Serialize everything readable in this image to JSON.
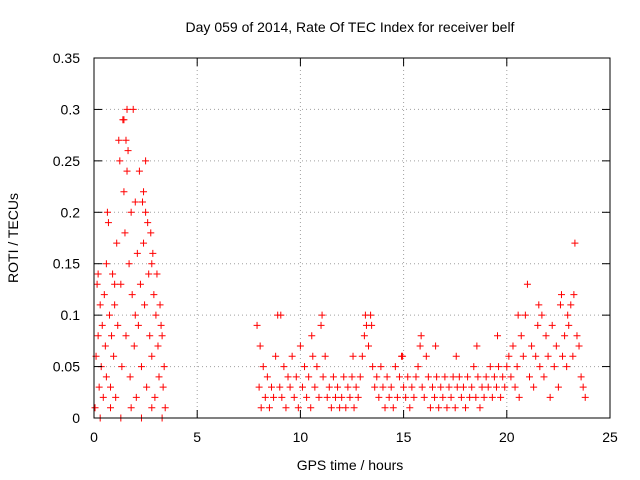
{
  "chart_data": {
    "type": "scatter",
    "title": "Day 059 of 2014, Rate Of TEC Index for receiver belf",
    "xlabel": "GPS time / hours",
    "ylabel": "ROTI / TECUs",
    "xlim": [
      0,
      25
    ],
    "ylim": [
      0,
      0.35
    ],
    "x_ticks": [
      0,
      5,
      10,
      15,
      20,
      25
    ],
    "x_tick_labels": [
      "0",
      "5",
      "10",
      "15",
      "20",
      "25"
    ],
    "y_ticks": [
      0,
      0.05,
      0.1,
      0.15,
      0.2,
      0.25,
      0.3,
      0.35
    ],
    "y_tick_labels": [
      "0",
      "0.05",
      "0.1",
      "0.15",
      "0.2",
      "0.25",
      "0.3",
      "0.35"
    ],
    "grid": true,
    "marker": "+",
    "marker_color": "#ff0000",
    "series": [
      {
        "name": "ROTI",
        "points": [
          [
            0.05,
            0.01
          ],
          [
            0.1,
            0.06
          ],
          [
            0.15,
            0.13
          ],
          [
            0.2,
            0.08
          ],
          [
            0.25,
            0.03
          ],
          [
            0.3,
            0.11
          ],
          [
            0.35,
            0.05
          ],
          [
            0.4,
            0.09
          ],
          [
            0.45,
            0.02
          ],
          [
            0.5,
            0.12
          ],
          [
            0.55,
            0.07
          ],
          [
            0.6,
            0.04
          ],
          [
            0.65,
            0.2
          ],
          [
            0.7,
            0.19
          ],
          [
            0.75,
            0.1
          ],
          [
            0.8,
            0.03
          ],
          [
            0.85,
            0.08
          ],
          [
            0.9,
            0.14
          ],
          [
            0.95,
            0.06
          ],
          [
            1.0,
            0.11
          ],
          [
            1.05,
            0.02
          ],
          [
            1.1,
            0.17
          ],
          [
            1.15,
            0.09
          ],
          [
            1.2,
            0.27
          ],
          [
            1.25,
            0.25
          ],
          [
            1.3,
            0.13
          ],
          [
            1.35,
            0.05
          ],
          [
            1.4,
            0.29
          ],
          [
            1.45,
            0.22
          ],
          [
            1.5,
            0.18
          ],
          [
            1.55,
            0.08
          ],
          [
            1.6,
            0.3
          ],
          [
            1.65,
            0.26
          ],
          [
            1.7,
            0.15
          ],
          [
            1.75,
            0.04
          ],
          [
            1.8,
            0.2
          ],
          [
            1.85,
            0.12
          ],
          [
            1.9,
            0.3
          ],
          [
            1.95,
            0.07
          ],
          [
            2.0,
            0.1
          ],
          [
            2.05,
            0.02
          ],
          [
            2.1,
            0.16
          ],
          [
            2.15,
            0.09
          ],
          [
            2.2,
            0.24
          ],
          [
            2.25,
            0.13
          ],
          [
            2.3,
            0.05
          ],
          [
            2.35,
            0.21
          ],
          [
            2.4,
            0.17
          ],
          [
            2.45,
            0.11
          ],
          [
            2.5,
            0.25
          ],
          [
            2.55,
            0.03
          ],
          [
            2.6,
            0.19
          ],
          [
            2.65,
            0.14
          ],
          [
            2.7,
            0.08
          ],
          [
            2.75,
            0.18
          ],
          [
            2.8,
            0.06
          ],
          [
            2.85,
            0.16
          ],
          [
            2.9,
            0.12
          ],
          [
            2.95,
            0.02
          ],
          [
            3.0,
            0.1
          ],
          [
            3.05,
            0.14
          ],
          [
            3.1,
            0.07
          ],
          [
            3.15,
            0.04
          ],
          [
            3.2,
            0.11
          ],
          [
            3.25,
            0.09
          ],
          [
            3.3,
            0.08
          ],
          [
            3.35,
            0.03
          ],
          [
            3.4,
            0.05
          ],
          [
            3.45,
            0.01
          ],
          [
            0.3,
            0.0
          ],
          [
            0.8,
            0.01
          ],
          [
            1.3,
            0.0
          ],
          [
            1.8,
            0.01
          ],
          [
            2.3,
            0.0
          ],
          [
            2.8,
            0.01
          ],
          [
            3.3,
            0.0
          ],
          [
            0.6,
            0.15
          ],
          [
            1.0,
            0.13
          ],
          [
            1.6,
            0.24
          ],
          [
            2.0,
            0.21
          ],
          [
            2.4,
            0.22
          ],
          [
            2.8,
            0.15
          ],
          [
            0.2,
            0.14
          ],
          [
            1.45,
            0.29
          ],
          [
            1.55,
            0.27
          ],
          [
            2.5,
            0.2
          ],
          [
            7.9,
            0.09
          ],
          [
            8.0,
            0.03
          ],
          [
            8.1,
            0.01
          ],
          [
            8.2,
            0.05
          ],
          [
            8.3,
            0.02
          ],
          [
            8.4,
            0.04
          ],
          [
            8.5,
            0.01
          ],
          [
            8.6,
            0.03
          ],
          [
            8.7,
            0.02
          ],
          [
            8.8,
            0.06
          ],
          [
            8.9,
            0.1
          ],
          [
            9.0,
            0.03
          ],
          [
            9.1,
            0.02
          ],
          [
            9.2,
            0.05
          ],
          [
            9.3,
            0.01
          ],
          [
            9.4,
            0.04
          ],
          [
            9.5,
            0.03
          ],
          [
            9.6,
            0.06
          ],
          [
            9.7,
            0.02
          ],
          [
            9.8,
            0.04
          ],
          [
            9.9,
            0.01
          ],
          [
            10.0,
            0.07
          ],
          [
            10.1,
            0.03
          ],
          [
            10.2,
            0.05
          ],
          [
            10.3,
            0.02
          ],
          [
            10.4,
            0.04
          ],
          [
            10.5,
            0.01
          ],
          [
            10.6,
            0.06
          ],
          [
            10.7,
            0.03
          ],
          [
            10.8,
            0.05
          ],
          [
            10.9,
            0.02
          ],
          [
            11.0,
            0.09
          ],
          [
            11.1,
            0.04
          ],
          [
            11.2,
            0.06
          ],
          [
            11.3,
            0.02
          ],
          [
            11.4,
            0.03
          ],
          [
            11.5,
            0.01
          ],
          [
            11.6,
            0.04
          ],
          [
            11.7,
            0.02
          ],
          [
            11.8,
            0.03
          ],
          [
            11.9,
            0.01
          ],
          [
            12.0,
            0.02
          ],
          [
            12.1,
            0.04
          ],
          [
            12.2,
            0.01
          ],
          [
            12.3,
            0.03
          ],
          [
            12.4,
            0.02
          ],
          [
            12.5,
            0.04
          ],
          [
            12.6,
            0.01
          ],
          [
            12.7,
            0.03
          ],
          [
            12.8,
            0.02
          ],
          [
            12.9,
            0.04
          ],
          [
            13.0,
            0.06
          ],
          [
            13.1,
            0.08
          ],
          [
            13.2,
            0.09
          ],
          [
            13.3,
            0.07
          ],
          [
            13.4,
            0.1
          ],
          [
            13.5,
            0.05
          ],
          [
            13.6,
            0.03
          ],
          [
            13.7,
            0.04
          ],
          [
            13.8,
            0.02
          ],
          [
            13.9,
            0.05
          ],
          [
            14.0,
            0.03
          ],
          [
            14.1,
            0.01
          ],
          [
            14.2,
            0.04
          ],
          [
            14.3,
            0.02
          ],
          [
            14.4,
            0.03
          ],
          [
            14.5,
            0.01
          ],
          [
            14.6,
            0.05
          ],
          [
            14.7,
            0.02
          ],
          [
            14.8,
            0.04
          ],
          [
            14.9,
            0.06
          ],
          [
            15.0,
            0.03
          ],
          [
            15.1,
            0.02
          ],
          [
            15.2,
            0.04
          ],
          [
            15.3,
            0.01
          ],
          [
            15.4,
            0.03
          ],
          [
            15.5,
            0.02
          ],
          [
            15.6,
            0.04
          ],
          [
            15.7,
            0.05
          ],
          [
            15.8,
            0.07
          ],
          [
            15.9,
            0.03
          ],
          [
            16.0,
            0.02
          ],
          [
            16.1,
            0.06
          ],
          [
            16.2,
            0.04
          ],
          [
            16.3,
            0.01
          ],
          [
            16.4,
            0.03
          ],
          [
            16.5,
            0.02
          ],
          [
            16.6,
            0.04
          ],
          [
            16.7,
            0.01
          ],
          [
            16.8,
            0.03
          ],
          [
            16.9,
            0.02
          ],
          [
            17.0,
            0.04
          ],
          [
            17.1,
            0.01
          ],
          [
            17.2,
            0.03
          ],
          [
            17.3,
            0.02
          ],
          [
            17.4,
            0.04
          ],
          [
            17.5,
            0.01
          ],
          [
            17.6,
            0.03
          ],
          [
            17.7,
            0.04
          ],
          [
            17.8,
            0.02
          ],
          [
            17.9,
            0.03
          ],
          [
            18.0,
            0.01
          ],
          [
            18.1,
            0.04
          ],
          [
            18.2,
            0.02
          ],
          [
            18.3,
            0.03
          ],
          [
            18.4,
            0.05
          ],
          [
            18.5,
            0.02
          ],
          [
            18.6,
            0.04
          ],
          [
            18.7,
            0.01
          ],
          [
            18.8,
            0.03
          ],
          [
            18.9,
            0.02
          ],
          [
            19.0,
            0.04
          ],
          [
            19.1,
            0.03
          ],
          [
            19.2,
            0.05
          ],
          [
            19.3,
            0.02
          ],
          [
            19.4,
            0.04
          ],
          [
            19.5,
            0.03
          ],
          [
            19.6,
            0.05
          ],
          [
            19.7,
            0.02
          ],
          [
            19.8,
            0.04
          ],
          [
            19.9,
            0.03
          ],
          [
            20.0,
            0.05
          ],
          [
            20.1,
            0.06
          ],
          [
            20.2,
            0.04
          ],
          [
            20.3,
            0.07
          ],
          [
            20.4,
            0.03
          ],
          [
            20.5,
            0.05
          ],
          [
            20.6,
            0.02
          ],
          [
            20.7,
            0.08
          ],
          [
            20.8,
            0.06
          ],
          [
            20.9,
            0.1
          ],
          [
            21.0,
            0.13
          ],
          [
            21.1,
            0.04
          ],
          [
            21.2,
            0.07
          ],
          [
            21.3,
            0.03
          ],
          [
            21.4,
            0.06
          ],
          [
            21.5,
            0.09
          ],
          [
            21.6,
            0.05
          ],
          [
            21.7,
            0.1
          ],
          [
            21.8,
            0.04
          ],
          [
            21.9,
            0.08
          ],
          [
            22.0,
            0.06
          ],
          [
            22.1,
            0.02
          ],
          [
            22.2,
            0.09
          ],
          [
            22.3,
            0.05
          ],
          [
            22.4,
            0.07
          ],
          [
            22.5,
            0.03
          ],
          [
            22.6,
            0.11
          ],
          [
            22.7,
            0.06
          ],
          [
            22.8,
            0.08
          ],
          [
            22.9,
            0.05
          ],
          [
            23.0,
            0.09
          ],
          [
            23.1,
            0.11
          ],
          [
            23.2,
            0.06
          ],
          [
            23.3,
            0.17
          ],
          [
            23.4,
            0.08
          ],
          [
            23.5,
            0.07
          ],
          [
            23.6,
            0.04
          ],
          [
            23.7,
            0.03
          ],
          [
            23.8,
            0.02
          ],
          [
            8.05,
            0.07
          ],
          [
            9.05,
            0.1
          ],
          [
            10.55,
            0.08
          ],
          [
            11.05,
            0.1
          ],
          [
            12.55,
            0.06
          ],
          [
            13.15,
            0.1
          ],
          [
            13.45,
            0.09
          ],
          [
            14.95,
            0.06
          ],
          [
            15.85,
            0.08
          ],
          [
            16.55,
            0.07
          ],
          [
            17.55,
            0.06
          ],
          [
            18.55,
            0.07
          ],
          [
            19.55,
            0.08
          ],
          [
            20.55,
            0.1
          ],
          [
            21.55,
            0.11
          ],
          [
            22.65,
            0.12
          ],
          [
            23.25,
            0.12
          ],
          [
            22.95,
            0.1
          ]
        ]
      }
    ]
  }
}
